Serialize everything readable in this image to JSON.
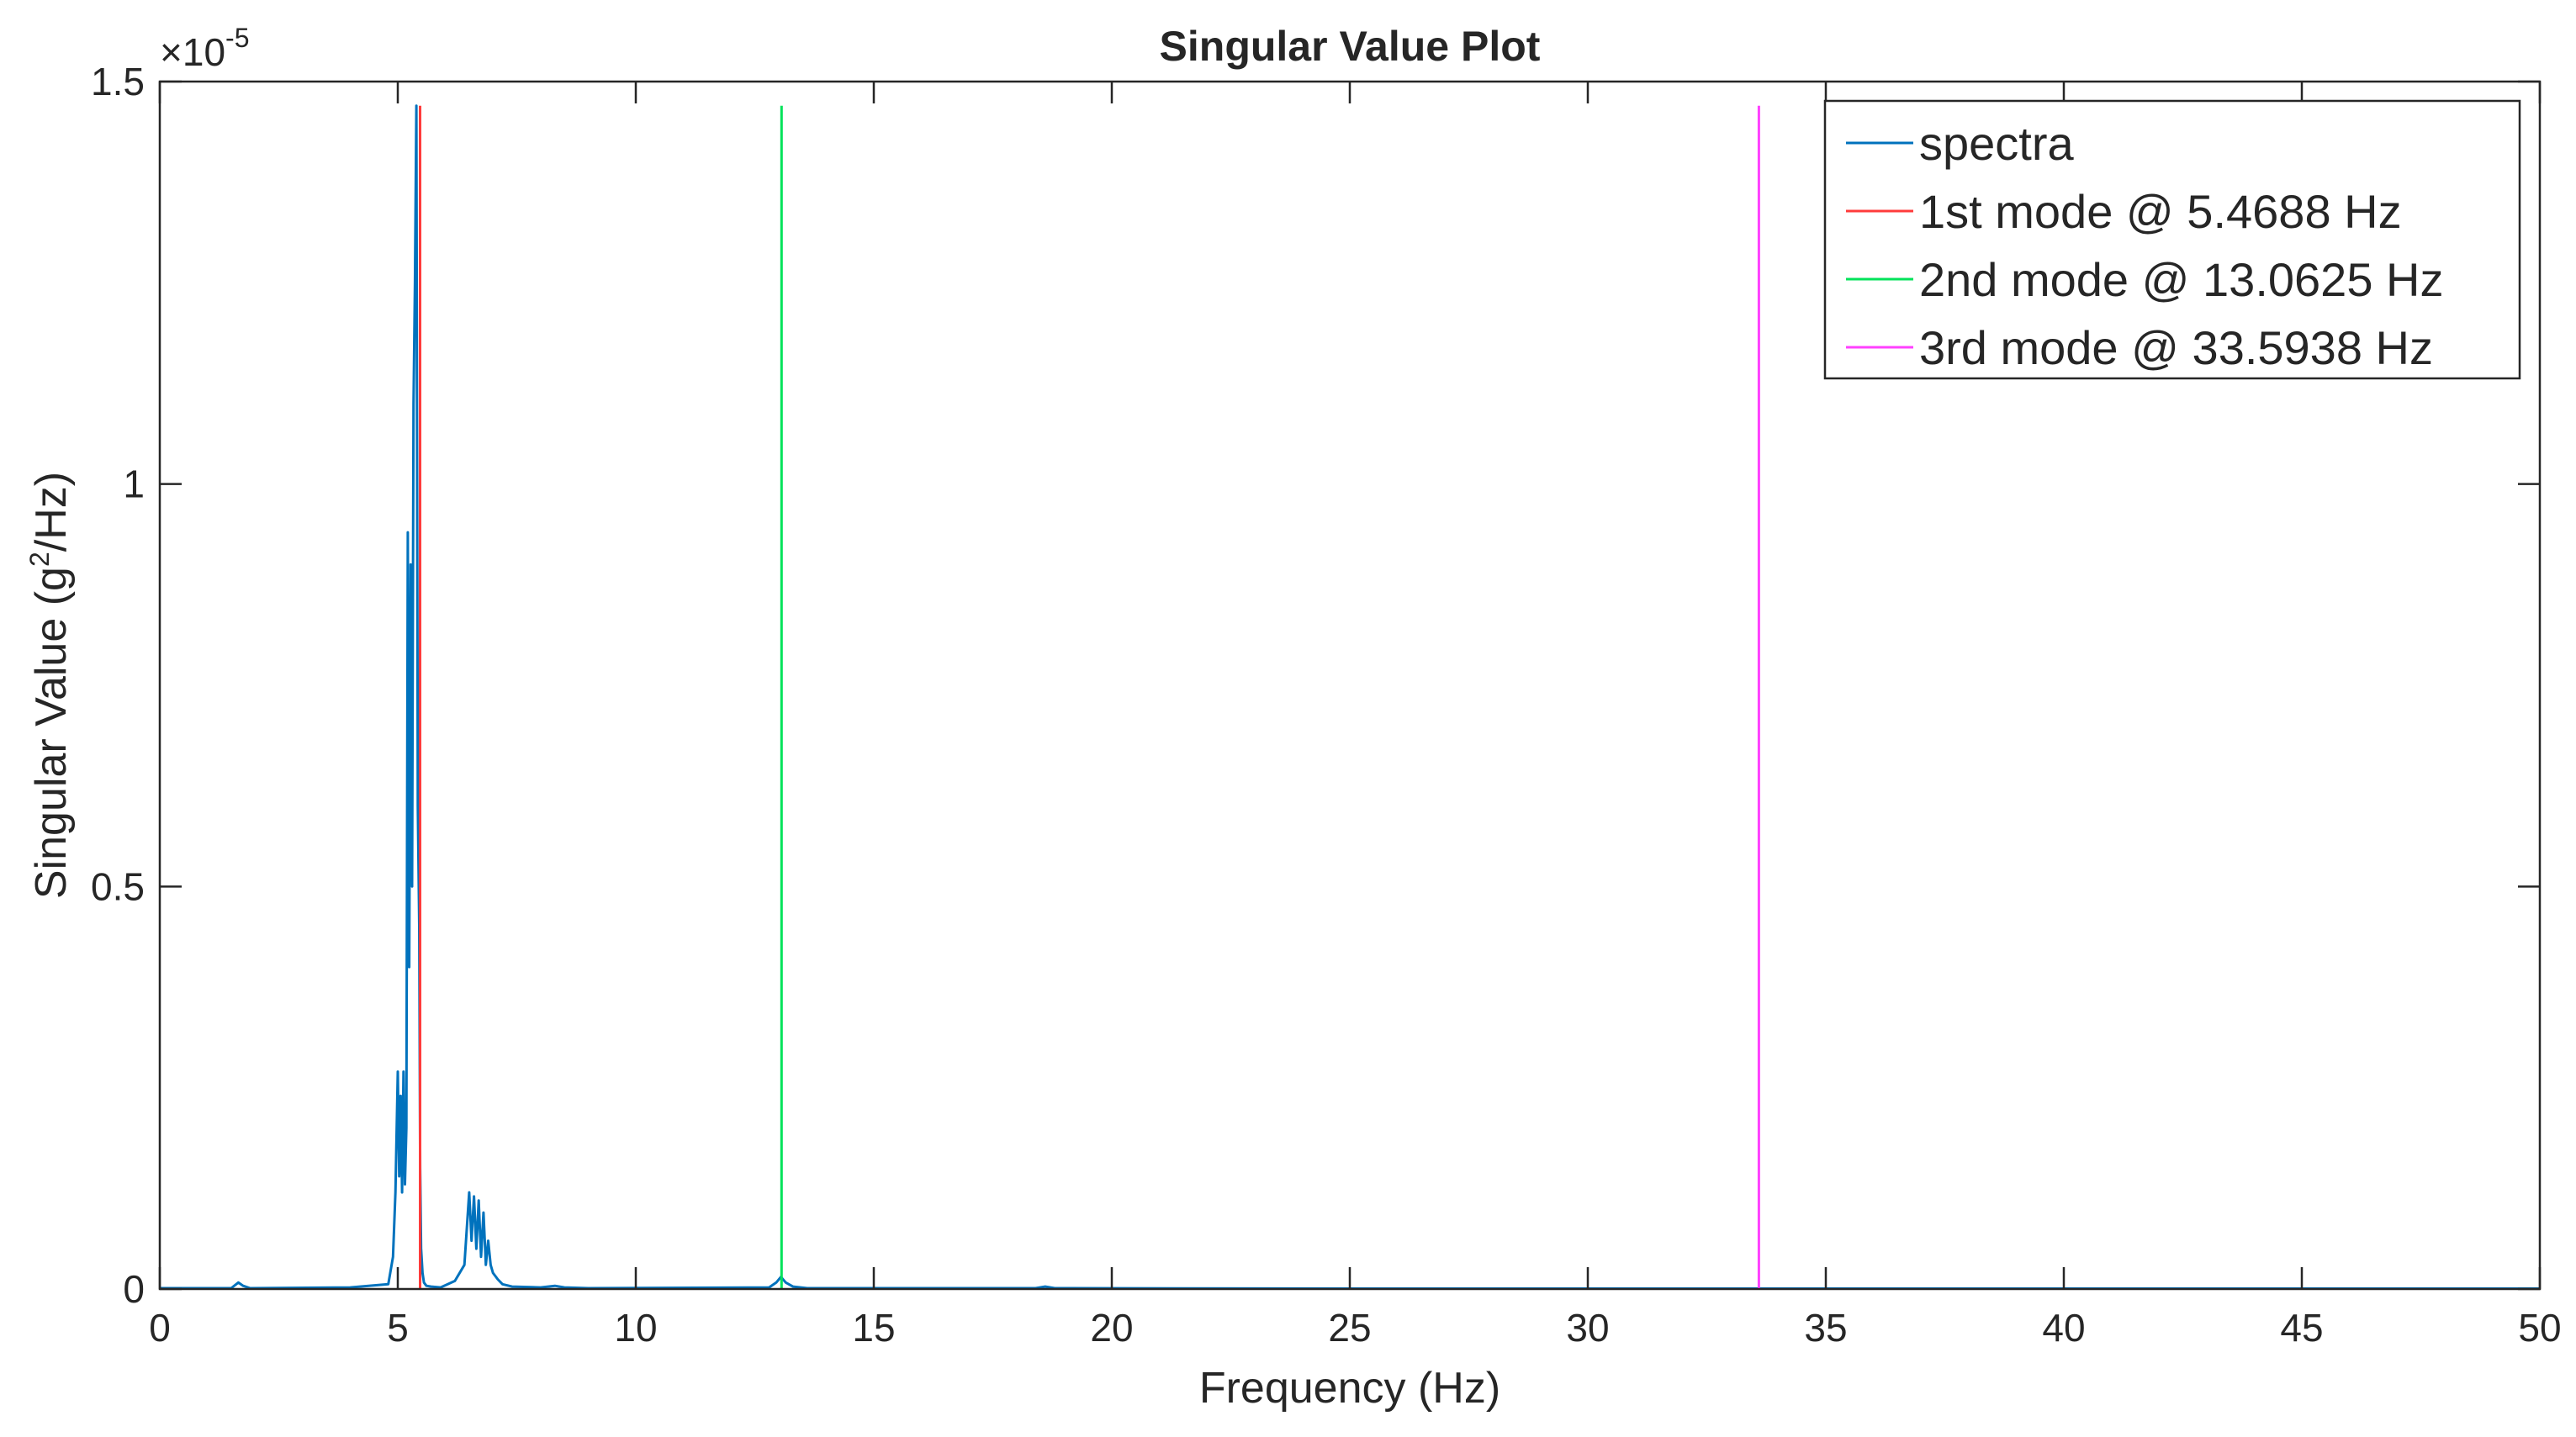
{
  "chart_data": {
    "type": "line",
    "title": "Singular Value Plot",
    "xlabel": "Frequency (Hz)",
    "ylabel_main": "Singular Value (g",
    "ylabel_sup": "2",
    "ylabel_end": "/Hz)",
    "y_multiplier_base": "×10",
    "y_multiplier_exp": "-5",
    "xlim": [
      0,
      50
    ],
    "ylim": [
      0,
      1.5
    ],
    "x_ticks": [
      0,
      5,
      10,
      15,
      20,
      25,
      30,
      35,
      40,
      45,
      50
    ],
    "x_tick_labels": [
      "0",
      "5",
      "10",
      "15",
      "20",
      "25",
      "30",
      "35",
      "40",
      "45",
      "50"
    ],
    "y_ticks": [
      0,
      0.5,
      1,
      1.5
    ],
    "y_tick_labels": [
      "0",
      "0.5",
      "1",
      "1.5"
    ],
    "grid": false,
    "legend_position": "top-right",
    "series": [
      {
        "name": "spectra",
        "color": "#0072BD",
        "x": [
          0,
          1.5,
          1.65,
          1.75,
          1.9,
          4.0,
          4.8,
          4.9,
          4.95,
          5.0,
          5.03,
          5.06,
          5.09,
          5.12,
          5.15,
          5.18,
          5.21,
          5.24,
          5.27,
          5.3,
          5.33,
          5.36,
          5.39,
          5.42,
          5.45,
          5.47,
          5.49,
          5.52,
          5.55,
          5.6,
          5.7,
          5.9,
          6.2,
          6.4,
          6.5,
          6.55,
          6.6,
          6.65,
          6.7,
          6.75,
          6.8,
          6.85,
          6.9,
          6.95,
          7.0,
          7.1,
          7.2,
          7.4,
          8.0,
          8.3,
          8.5,
          9.0,
          12.8,
          12.95,
          13.05,
          13.15,
          13.3,
          13.6,
          18.4,
          18.6,
          18.8,
          25,
          30,
          40,
          50
        ],
        "y": [
          0.001,
          0.001,
          0.008,
          0.004,
          0.001,
          0.002,
          0.006,
          0.04,
          0.12,
          0.27,
          0.14,
          0.24,
          0.12,
          0.27,
          0.13,
          0.2,
          0.94,
          0.4,
          0.9,
          0.5,
          1.1,
          1.25,
          1.47,
          0.6,
          0.45,
          0.15,
          0.05,
          0.02,
          0.008,
          0.004,
          0.003,
          0.002,
          0.01,
          0.03,
          0.12,
          0.06,
          0.115,
          0.05,
          0.11,
          0.04,
          0.095,
          0.03,
          0.06,
          0.03,
          0.02,
          0.012,
          0.006,
          0.003,
          0.002,
          0.004,
          0.002,
          0.001,
          0.002,
          0.008,
          0.015,
          0.008,
          0.003,
          0.001,
          0.001,
          0.003,
          0.001,
          0.0005,
          0.0005,
          0.0005,
          0.0005
        ]
      },
      {
        "name": "1st mode @ 5.4688 Hz",
        "color": "#FF3B3B",
        "x": [
          5.4688,
          5.4688
        ],
        "y": [
          0,
          1.47
        ]
      },
      {
        "name": "2nd mode @ 13.0625 Hz",
        "color": "#00E35A",
        "x": [
          13.0625,
          13.0625
        ],
        "y": [
          0,
          1.47
        ]
      },
      {
        "name": "3rd mode @ 33.5938 Hz",
        "color": "#FF40FF",
        "x": [
          33.5938,
          33.5938
        ],
        "y": [
          0,
          1.47
        ]
      }
    ]
  }
}
